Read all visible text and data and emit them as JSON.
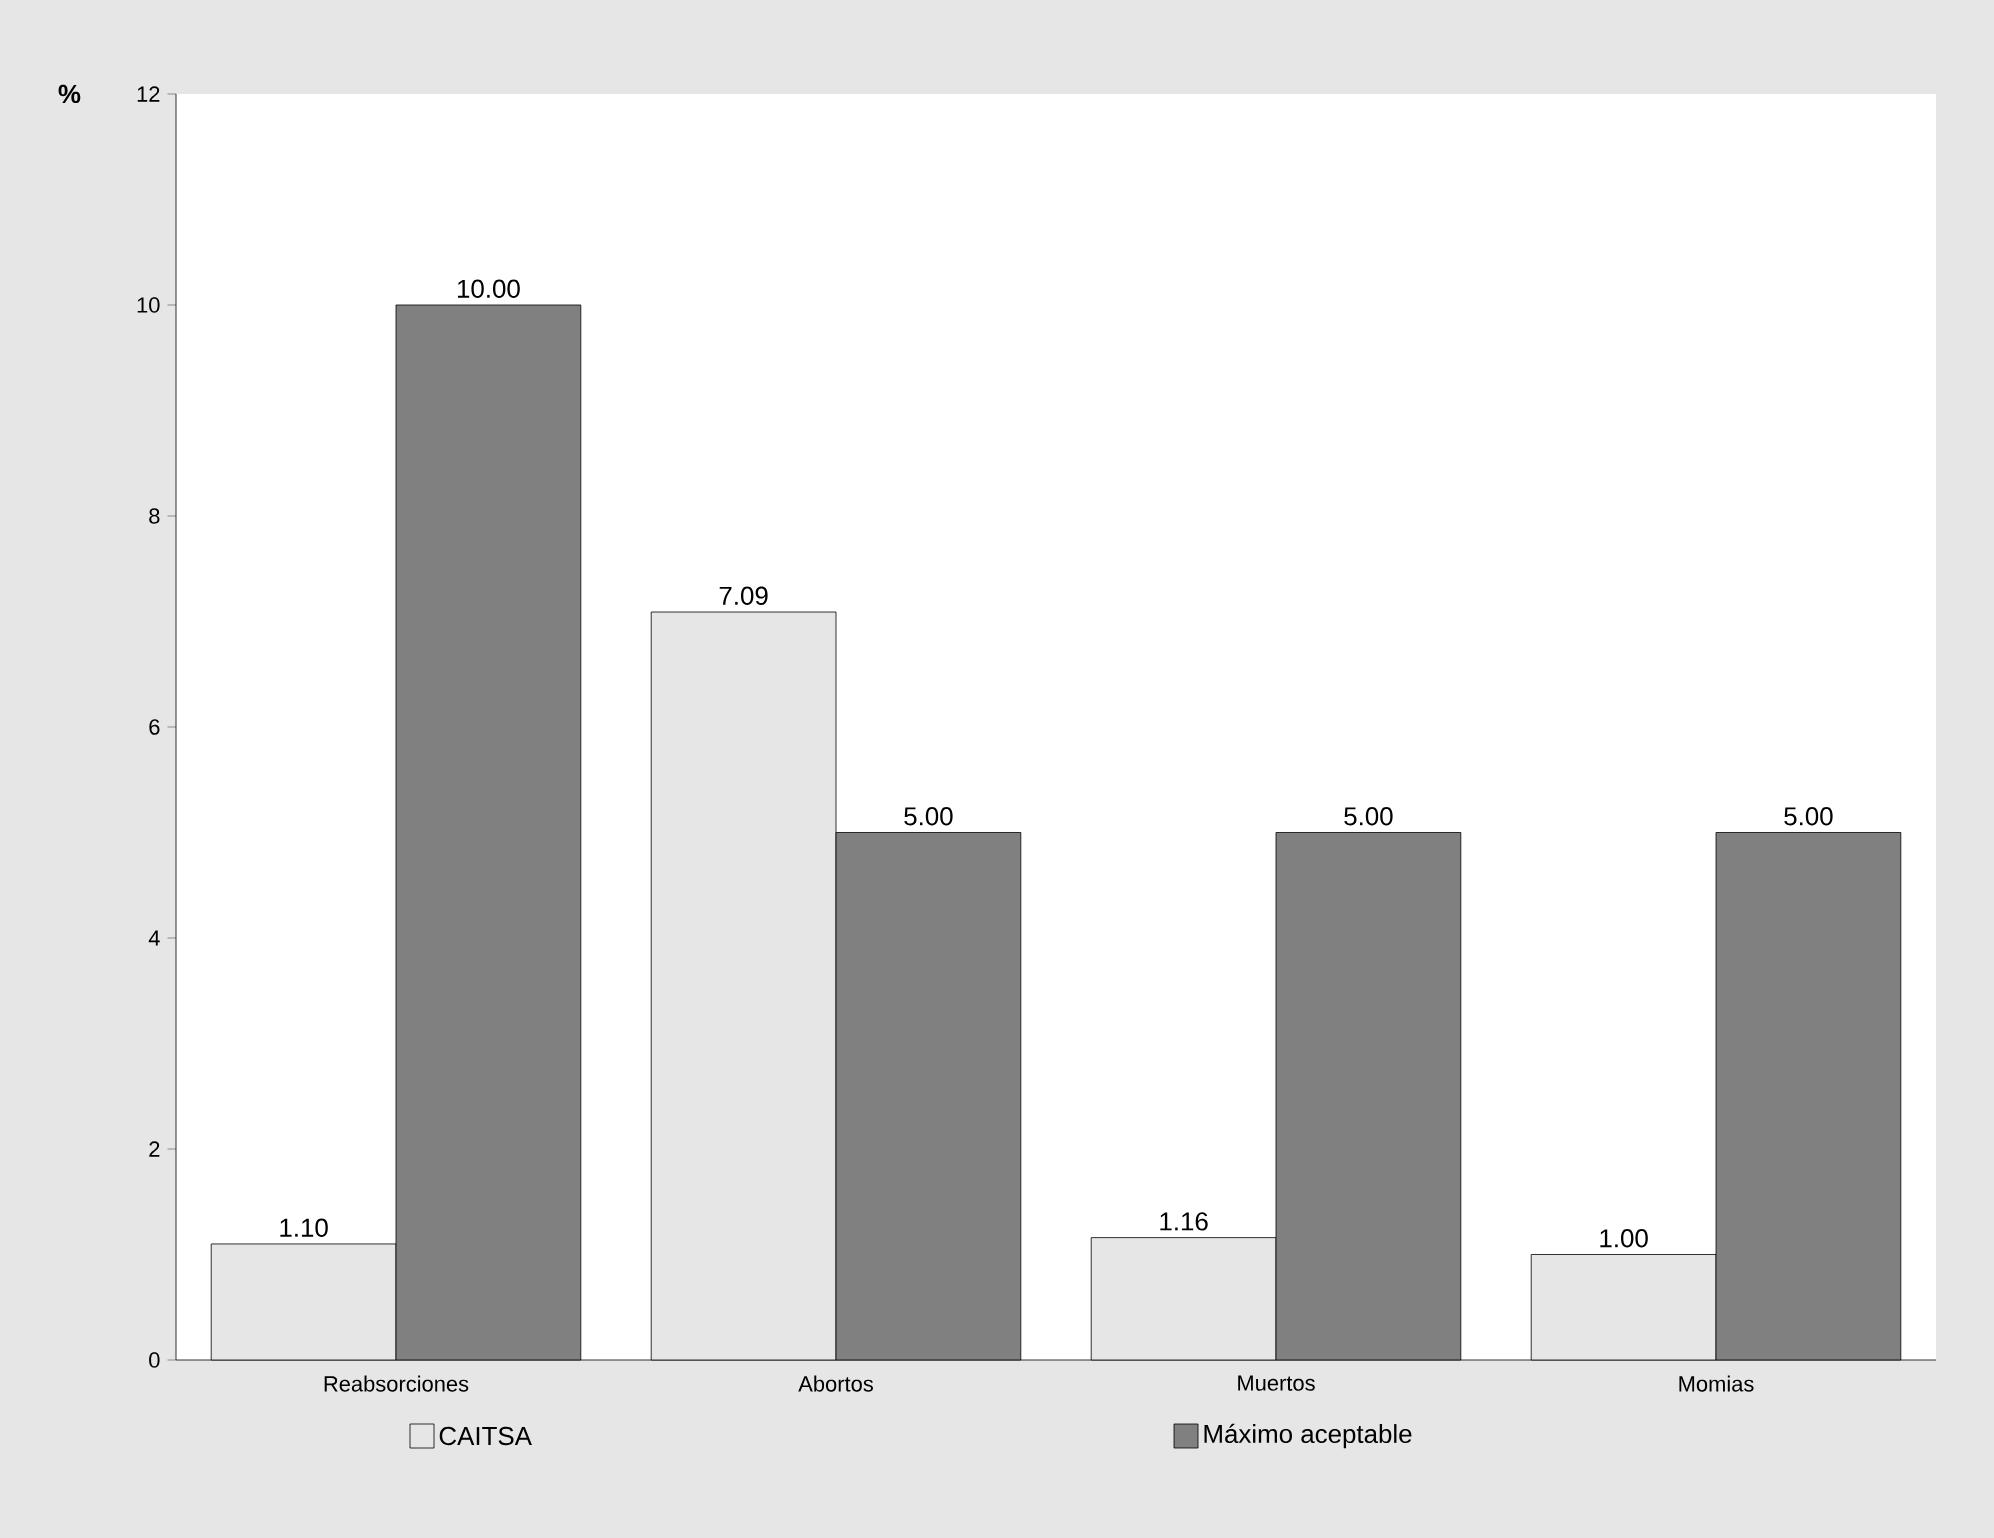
{
  "chart_data": {
    "type": "bar",
    "ylabel": "%",
    "categories": [
      "Reabsorciones",
      "Abortos",
      "Muertos",
      "Momias"
    ],
    "series": [
      {
        "name": "CAITSA",
        "color": "#e6e6e6",
        "values": [
          1.1,
          7.09,
          1.16,
          1.0
        ],
        "value_labels": [
          "1.10",
          "7.09",
          "1.16",
          "1.00"
        ]
      },
      {
        "name": "Máximo aceptable",
        "color": "#808080",
        "values": [
          10.0,
          5.0,
          5.0,
          5.0
        ],
        "value_labels": [
          "10.00",
          "5.00",
          "5.00",
          "5.00"
        ]
      }
    ],
    "ylim": [
      0,
      12
    ],
    "yticks": [
      0,
      2,
      4,
      6,
      8,
      10,
      12
    ],
    "grid": false,
    "legend": "bottom"
  }
}
